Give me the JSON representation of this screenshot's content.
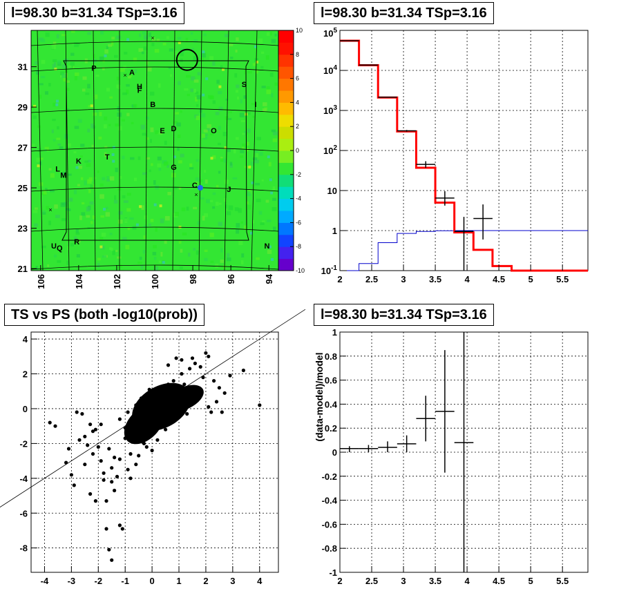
{
  "panels": {
    "map_title": "l=98.30 b=31.34 TSp=3.16",
    "spectrum_title": "l=98.30 b=31.34 TSp=3.16",
    "scatter_title": "TS vs PS (both -log10(prob))",
    "residual_title": "l=98.30 b=31.34 TSp=3.16"
  },
  "colors": {
    "map_background": "#33e633",
    "histogram_red": "#ff0000",
    "model_blue": "#0000cc",
    "points": "#000000"
  },
  "chart_data": [
    {
      "type": "heatmap",
      "title": "l=98.30 b=31.34 TSp=3.16",
      "xlim": [
        106.5,
        93.5
      ],
      "ylim": [
        20.9,
        32.8
      ],
      "x_ticks": [
        "106",
        "104",
        "102",
        "100",
        "98",
        "96",
        "94"
      ],
      "y_ticks": [
        "21",
        "23",
        "25",
        "27",
        "29",
        "31"
      ],
      "colorbar": {
        "range": [
          -10,
          10
        ],
        "ticks": [
          "-10",
          "-8",
          "-6",
          "-4",
          "-2",
          "0",
          "2",
          "4",
          "6",
          "8",
          "10"
        ]
      },
      "source_labels": [
        {
          "label": "P",
          "l": 103.2,
          "b": 30.8
        },
        {
          "label": "A",
          "l": 101.2,
          "b": 30.6
        },
        {
          "label": "H",
          "l": 100.8,
          "b": 29.9
        },
        {
          "label": "F",
          "l": 100.8,
          "b": 29.7
        },
        {
          "label": "B",
          "l": 100.1,
          "b": 29.0
        },
        {
          "label": "S",
          "l": 95.3,
          "b": 30.0
        },
        {
          "label": "I",
          "l": 94.7,
          "b": 29.0
        },
        {
          "label": "E",
          "l": 99.6,
          "b": 27.7
        },
        {
          "label": "D",
          "l": 99.0,
          "b": 27.8
        },
        {
          "label": "O",
          "l": 96.9,
          "b": 27.7
        },
        {
          "label": "K",
          "l": 104.0,
          "b": 26.2
        },
        {
          "label": "T",
          "l": 102.5,
          "b": 26.4
        },
        {
          "label": "G",
          "l": 99.0,
          "b": 25.9
        },
        {
          "label": "L",
          "l": 105.1,
          "b": 25.8
        },
        {
          "label": "M",
          "l": 104.8,
          "b": 25.5
        },
        {
          "label": "C",
          "l": 97.9,
          "b": 25.0
        },
        {
          "label": "J",
          "l": 96.1,
          "b": 24.8
        },
        {
          "label": "R",
          "l": 104.1,
          "b": 22.2
        },
        {
          "label": "U",
          "l": 105.3,
          "b": 22.0
        },
        {
          "label": "Q",
          "l": 105.0,
          "b": 21.9
        },
        {
          "label": "N",
          "l": 94.1,
          "b": 22.0
        }
      ],
      "circle": {
        "l": 98.3,
        "b": 31.34,
        "r": 0.5
      }
    },
    {
      "type": "line",
      "title": "l=98.30 b=31.34 TSp=3.16",
      "xlim": [
        2,
        5.9
      ],
      "ylim": [
        0.1,
        100000
      ],
      "yscale": "log",
      "grid": true,
      "x_ticks": [
        "2",
        "2.5",
        "3",
        "3.5",
        "4",
        "4.5",
        "5",
        "5.5"
      ],
      "y_ticks": [
        "10^-1",
        "1",
        "10",
        "10^2",
        "10^3",
        "10^4",
        "10^5"
      ],
      "series": [
        {
          "style": "red-step",
          "edges": [
            2.0,
            2.3,
            2.6,
            2.9,
            3.2,
            3.5,
            3.8,
            4.1,
            4.4,
            4.7,
            5.9
          ],
          "values": [
            55000,
            13500,
            2100,
            300,
            37,
            5,
            0.9,
            0.33,
            0.13,
            0.1
          ]
        },
        {
          "style": "blue-step",
          "edges": [
            2.0,
            2.3,
            2.6,
            2.9,
            3.2,
            3.5,
            3.8,
            4.1,
            4.4,
            4.7,
            5.9
          ],
          "values": [
            0.1,
            0.15,
            0.5,
            0.85,
            0.95,
            0.99,
            1.0,
            1.0,
            1.0,
            1.0
          ]
        },
        {
          "style": "black-points",
          "x": [
            2.15,
            2.45,
            2.75,
            3.05,
            3.35,
            3.65,
            3.95,
            4.25
          ],
          "y": [
            55000,
            13600,
            2150,
            310,
            45,
            6.5,
            0.95,
            2.0
          ],
          "ylow": [
            54500,
            13450,
            2100,
            295,
            37,
            4.2,
            0.1,
            0.6
          ],
          "yhigh": [
            55500,
            13750,
            2200,
            325,
            54,
            9.6,
            2.2,
            4.5
          ],
          "xerr": 0.15
        }
      ]
    },
    {
      "type": "scatter",
      "title": "TS vs PS (both -log10(prob))",
      "xlim": [
        -4.5,
        4.7
      ],
      "ylim": [
        -9.4,
        4.4
      ],
      "grid": true,
      "x_ticks": [
        "-4",
        "-3",
        "-2",
        "-1",
        "0",
        "1",
        "2",
        "3",
        "4"
      ],
      "y_ticks": [
        "-8",
        "-6",
        "-4",
        "-2",
        "0",
        "2",
        "4"
      ],
      "reference_line": {
        "slope": 1,
        "intercept": 0
      },
      "points": [
        [
          -3.8,
          -0.8
        ],
        [
          -3.6,
          -1.0
        ],
        [
          -3.2,
          -3.1
        ],
        [
          -3.0,
          -3.8
        ],
        [
          -2.9,
          -4.4
        ],
        [
          -3.1,
          -2.3
        ],
        [
          -2.8,
          -0.2
        ],
        [
          -2.6,
          -0.3
        ],
        [
          -2.5,
          -1.6
        ],
        [
          -2.4,
          -2.1
        ],
        [
          -2.3,
          -0.9
        ],
        [
          -2.2,
          -1.3
        ],
        [
          -2.7,
          -1.8
        ],
        [
          -2.5,
          -3.2
        ],
        [
          -2.3,
          -4.9
        ],
        [
          -2.1,
          -1.2
        ],
        [
          -2.2,
          -2.6
        ],
        [
          -2.1,
          -5.3
        ],
        [
          -2.0,
          -2.2
        ],
        [
          -1.9,
          -3.0
        ],
        [
          -1.8,
          -3.7
        ],
        [
          -1.8,
          -4.1
        ],
        [
          -1.7,
          -5.3
        ],
        [
          -1.7,
          -6.9
        ],
        [
          -1.9,
          -0.9
        ],
        [
          -1.6,
          -2.3
        ],
        [
          -1.5,
          -3.4
        ],
        [
          -1.5,
          -4.2
        ],
        [
          -1.4,
          -2.8
        ],
        [
          -1.4,
          -4.7
        ],
        [
          -1.6,
          -8.1
        ],
        [
          -1.5,
          -8.7
        ],
        [
          -1.2,
          -6.7
        ],
        [
          -1.1,
          -6.9
        ],
        [
          -1.3,
          -3.9
        ],
        [
          -1.2,
          -2.9
        ],
        [
          -1.0,
          -1.7
        ],
        [
          -0.9,
          -3.5
        ],
        [
          -0.8,
          -4.0
        ],
        [
          -0.8,
          -2.6
        ],
        [
          -0.7,
          -1.9
        ],
        [
          -0.6,
          -3.2
        ],
        [
          -1.2,
          -0.6
        ],
        [
          -1.0,
          -1.1
        ],
        [
          -0.5,
          -2.7
        ],
        [
          -0.6,
          0.2
        ],
        [
          -0.4,
          0.6
        ],
        [
          -0.3,
          -2.0
        ],
        [
          0.1,
          0.8
        ],
        [
          0.3,
          1.0
        ],
        [
          0.6,
          1.4
        ],
        [
          0.8,
          1.6
        ],
        [
          1.1,
          2.0
        ],
        [
          1.4,
          2.3
        ],
        [
          1.6,
          2.6
        ],
        [
          1.8,
          2.4
        ],
        [
          2.1,
          3.0
        ],
        [
          2.0,
          3.2
        ],
        [
          2.3,
          1.6
        ],
        [
          2.5,
          1.2
        ],
        [
          2.7,
          0.9
        ],
        [
          2.4,
          0.4
        ],
        [
          2.1,
          0.1
        ],
        [
          2.2,
          -0.2
        ],
        [
          2.6,
          -0.2
        ],
        [
          2.9,
          1.9
        ],
        [
          3.4,
          2.2
        ],
        [
          4.0,
          0.2
        ],
        [
          1.5,
          2.9
        ],
        [
          1.1,
          2.8
        ],
        [
          0.9,
          2.9
        ],
        [
          0.6,
          2.5
        ],
        [
          1.9,
          1.8
        ],
        [
          1.7,
          0.6
        ],
        [
          1.3,
          -0.3
        ],
        [
          0.9,
          -0.6
        ],
        [
          0.5,
          -1.2
        ],
        [
          0.2,
          -1.8
        ],
        [
          -0.2,
          -2.2
        ],
        [
          0.0,
          -2.4
        ],
        [
          -0.1,
          1.1
        ],
        [
          0.4,
          -0.9
        ],
        [
          1.2,
          1.4
        ],
        [
          -0.9,
          -0.2
        ]
      ]
    },
    {
      "type": "scatter",
      "title": "l=98.30 b=31.34 TSp=3.16",
      "ylabel": "(data-model)/model",
      "xlim": [
        2,
        5.9
      ],
      "ylim": [
        -1,
        1
      ],
      "grid": true,
      "x_ticks": [
        "2",
        "2.5",
        "3",
        "3.5",
        "4",
        "4.5",
        "5",
        "5.5"
      ],
      "y_ticks": [
        "-1",
        "-0.8",
        "-0.6",
        "-0.4",
        "-0.2",
        "0",
        "0.2",
        "0.4",
        "0.6",
        "0.8",
        "1"
      ],
      "x": [
        2.15,
        2.45,
        2.75,
        3.05,
        3.35,
        3.65,
        3.95
      ],
      "y": [
        0.03,
        0.03,
        0.04,
        0.07,
        0.28,
        0.34,
        0.08
      ],
      "ylow": [
        0.0,
        0.0,
        0.0,
        0.0,
        0.09,
        -0.17,
        -1.0
      ],
      "yhigh": [
        0.05,
        0.06,
        0.09,
        0.14,
        0.47,
        0.85,
        1.0
      ],
      "xerr": 0.15
    }
  ]
}
